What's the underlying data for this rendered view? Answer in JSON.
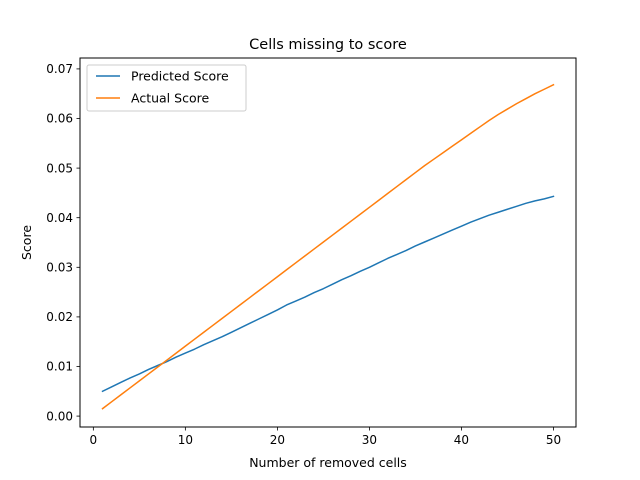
{
  "chart_data": {
    "type": "line",
    "title": "Cells missing to score",
    "xlabel": "Number of removed cells",
    "ylabel": "Score",
    "xlim": [
      -1.45,
      52.45
    ],
    "ylim": [
      -0.0022,
      0.0722
    ],
    "xticks": [
      0,
      10,
      20,
      30,
      40,
      50
    ],
    "yticks": [
      0.0,
      0.01,
      0.02,
      0.03,
      0.04,
      0.05,
      0.06,
      0.07
    ],
    "xtick_labels": [
      "0",
      "10",
      "20",
      "30",
      "40",
      "50"
    ],
    "ytick_labels": [
      "0.00",
      "0.01",
      "0.02",
      "0.03",
      "0.04",
      "0.05",
      "0.06",
      "0.07"
    ],
    "grid": false,
    "legend_position": "top-left",
    "series": [
      {
        "name": "Predicted Score",
        "color": "#1f77b4",
        "x": [
          1,
          2,
          3,
          4,
          5,
          6,
          7,
          8,
          9,
          10,
          11,
          12,
          13,
          14,
          15,
          16,
          17,
          18,
          19,
          20,
          21,
          22,
          23,
          24,
          25,
          26,
          27,
          28,
          29,
          30,
          31,
          32,
          33,
          34,
          35,
          36,
          37,
          38,
          39,
          40,
          41,
          42,
          43,
          44,
          45,
          46,
          47,
          48,
          49,
          50
        ],
        "y": [
          0.005,
          0.0059,
          0.0068,
          0.0077,
          0.0085,
          0.0094,
          0.0102,
          0.011,
          0.0119,
          0.0127,
          0.0135,
          0.0144,
          0.0152,
          0.016,
          0.0169,
          0.0178,
          0.0187,
          0.0196,
          0.0205,
          0.0214,
          0.0224,
          0.0232,
          0.024,
          0.0249,
          0.0257,
          0.0266,
          0.0275,
          0.0283,
          0.0292,
          0.03,
          0.0309,
          0.0318,
          0.0326,
          0.0334,
          0.0343,
          0.0351,
          0.0359,
          0.0367,
          0.0375,
          0.0383,
          0.0391,
          0.0398,
          0.0405,
          0.0411,
          0.0417,
          0.0423,
          0.0429,
          0.0434,
          0.0438,
          0.0443
        ]
      },
      {
        "name": "Actual Score",
        "color": "#ff7f0e",
        "x": [
          1,
          2,
          3,
          4,
          5,
          6,
          7,
          8,
          9,
          10,
          11,
          12,
          13,
          14,
          15,
          16,
          17,
          18,
          19,
          20,
          21,
          22,
          23,
          24,
          25,
          26,
          27,
          28,
          29,
          30,
          31,
          32,
          33,
          34,
          35,
          36,
          37,
          38,
          39,
          40,
          41,
          42,
          43,
          44,
          45,
          46,
          47,
          48,
          49,
          50
        ],
        "y": [
          0.0015,
          0.0029,
          0.0043,
          0.0057,
          0.0071,
          0.0085,
          0.0099,
          0.0113,
          0.0127,
          0.0141,
          0.0155,
          0.0169,
          0.0183,
          0.0197,
          0.0211,
          0.0225,
          0.0239,
          0.0253,
          0.0267,
          0.0281,
          0.0295,
          0.0309,
          0.0323,
          0.0337,
          0.0351,
          0.0365,
          0.0379,
          0.0393,
          0.0407,
          0.0421,
          0.0435,
          0.0449,
          0.0463,
          0.0477,
          0.0491,
          0.0505,
          0.0518,
          0.0531,
          0.0544,
          0.0557,
          0.057,
          0.0583,
          0.0596,
          0.0608,
          0.0619,
          0.063,
          0.064,
          0.065,
          0.0659,
          0.0668
        ]
      }
    ]
  }
}
